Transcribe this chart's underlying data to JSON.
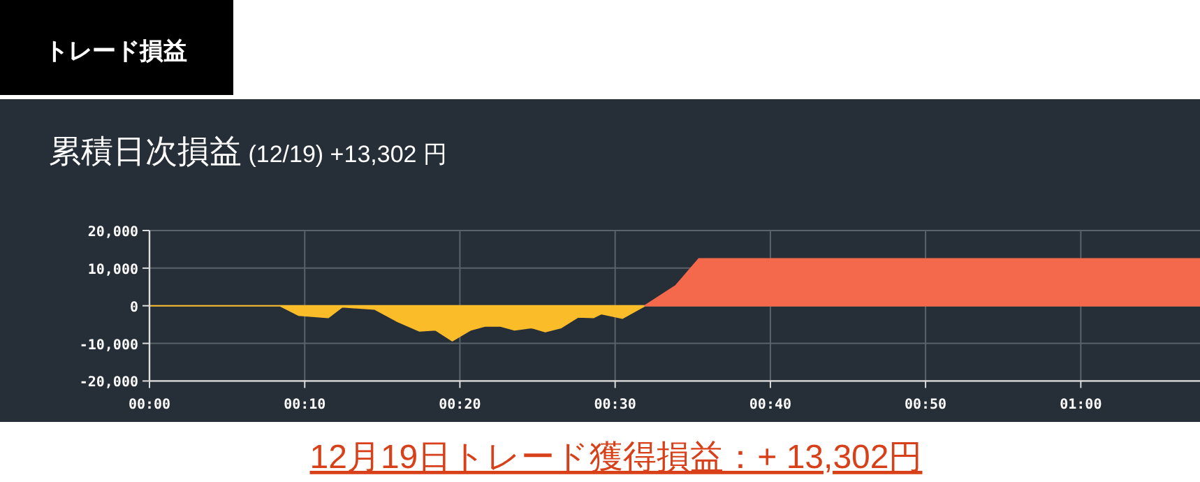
{
  "chart_data": {
    "type": "area",
    "title": "トレード損益",
    "subtitle": "累積日次損益 (12/19) +13,302 円",
    "annotations": [
      "12月19日トレード獲得損益：+ 13,302円"
    ],
    "series": [
      {
        "color": "#fbbc2a",
        "x": [
          0,
          0.14,
          0.16,
          0.192,
          0.207,
          0.242,
          0.265,
          0.29,
          0.307,
          0.325,
          0.345,
          0.36,
          0.377,
          0.392,
          0.41,
          0.425,
          0.442,
          0.46,
          0.477,
          0.485,
          0.508,
          0.532
        ],
        "values": [
          0,
          0,
          -2500,
          -3100,
          -300,
          -900,
          -4000,
          -6700,
          -6400,
          -9300,
          -6400,
          -5400,
          -5400,
          -6400,
          -5800,
          -6900,
          -5800,
          -3000,
          -3100,
          -2100,
          -3300,
          0
        ]
      },
      {
        "color": "#f4694c",
        "x": [
          0.532,
          0.565,
          0.59,
          1.128
        ],
        "values": [
          0,
          5300,
          12500,
          12500
        ]
      }
    ],
    "xlim": [
      0,
      1.128
    ],
    "xticks": [
      {
        "value": 0,
        "label": "00:00"
      },
      {
        "value": 0.1667,
        "label": "00:10"
      },
      {
        "value": 0.3333,
        "label": "00:20"
      },
      {
        "value": 0.5,
        "label": "00:30"
      },
      {
        "value": 0.6667,
        "label": "00:40"
      },
      {
        "value": 0.8333,
        "label": "00:50"
      },
      {
        "value": 1,
        "label": "01:00"
      }
    ],
    "ylim": [
      -20000,
      20000
    ],
    "yticks": [
      {
        "value": -20000,
        "label": "-20,000"
      },
      {
        "value": -10000,
        "label": "-10,000"
      },
      {
        "value": 0,
        "label": "0"
      },
      {
        "value": 10000,
        "label": "10,000"
      },
      {
        "value": 20000,
        "label": "20,000"
      }
    ],
    "grid": true
  }
}
